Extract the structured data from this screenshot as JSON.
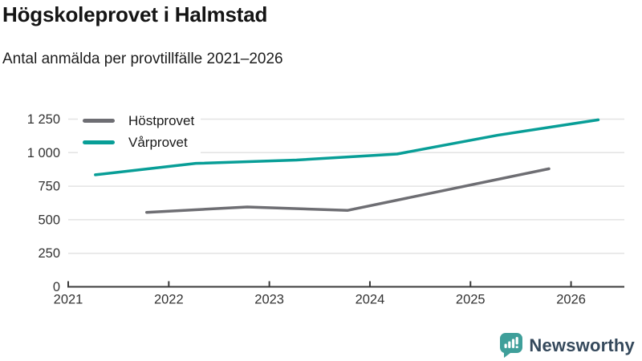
{
  "header": {
    "title": "Högskoleprovet i Halmstad",
    "subtitle": "Antal anmälda per provtillfälle 2021–2026"
  },
  "chart_data": {
    "type": "line",
    "title": "Högskoleprovet i Halmstad",
    "subtitle": "Antal anmälda per provtillfälle 2021–2026",
    "grid": "horizontal",
    "legend_position": "top-left",
    "x_axis": {
      "range": [
        2021,
        2026.53
      ],
      "ticks": [
        2021,
        2022,
        2023,
        2024,
        2025,
        2026
      ],
      "tick_labels": [
        "2021",
        "2022",
        "2023",
        "2024",
        "2025",
        "2026"
      ]
    },
    "y_axis": {
      "range": [
        0,
        1250
      ],
      "ticks": [
        0,
        250,
        500,
        750,
        1000,
        1250
      ],
      "tick_labels": [
        "0",
        "250",
        "500",
        "750",
        "1 000",
        "1 250"
      ]
    },
    "series": [
      {
        "name": "Höstprovet",
        "color": "#6e6e73",
        "x": [
          2021.78,
          2022.78,
          2023.78,
          2024.78,
          2025.78
        ],
        "values": [
          555,
          595,
          570,
          725,
          880
        ]
      },
      {
        "name": "Vårprovet",
        "color": "#089e97",
        "x": [
          2021.27,
          2022.27,
          2023.27,
          2024.27,
          2025.27,
          2026.27
        ],
        "values": [
          835,
          920,
          945,
          990,
          1130,
          1245
        ]
      }
    ]
  },
  "footer": {
    "brand": "Newsworthy",
    "brand_color": "#35495c",
    "icon_color": "#3f9f9a",
    "icon_name": "bar-chart-speech-bubble-icon"
  }
}
